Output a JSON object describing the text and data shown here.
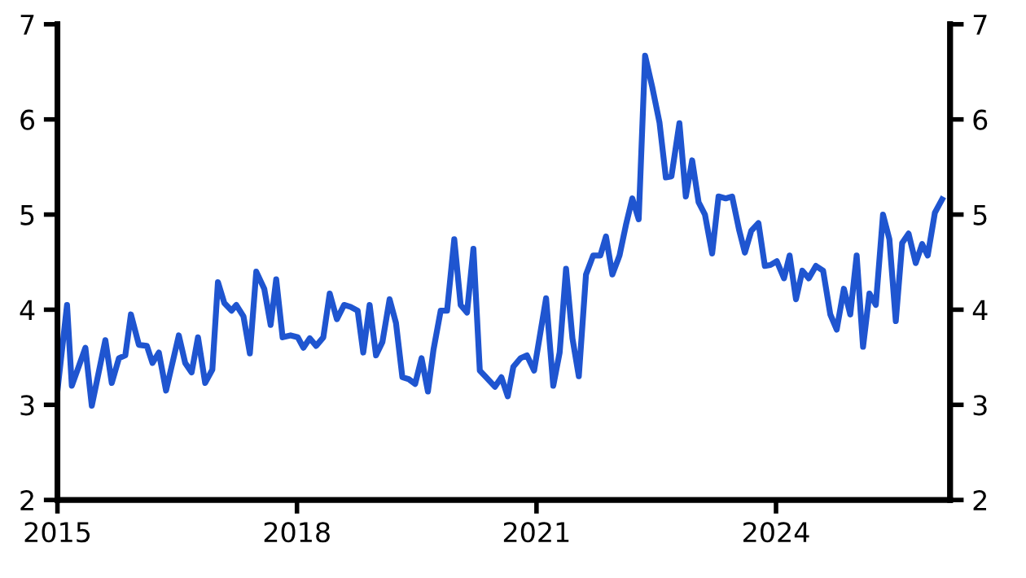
{
  "chart_data": {
    "type": "line",
    "x": [
      2015.0,
      2015.12,
      2015.18,
      2015.35,
      2015.43,
      2015.6,
      2015.68,
      2015.77,
      2015.85,
      2015.92,
      2016.02,
      2016.12,
      2016.19,
      2016.27,
      2016.36,
      2016.52,
      2016.6,
      2016.68,
      2016.76,
      2016.85,
      2016.94,
      2017.01,
      2017.09,
      2017.18,
      2017.24,
      2017.33,
      2017.41,
      2017.49,
      2017.59,
      2017.67,
      2017.74,
      2017.82,
      2017.92,
      2018.01,
      2018.08,
      2018.16,
      2018.24,
      2018.33,
      2018.41,
      2018.5,
      2018.59,
      2018.67,
      2018.76,
      2018.83,
      2018.91,
      2018.99,
      2019.07,
      2019.16,
      2019.24,
      2019.32,
      2019.4,
      2019.48,
      2019.56,
      2019.64,
      2019.71,
      2019.8,
      2019.88,
      2019.97,
      2020.05,
      2020.13,
      2020.21,
      2020.29,
      2020.37,
      2020.48,
      2020.56,
      2020.64,
      2020.71,
      2020.8,
      2020.88,
      2020.97,
      2021.12,
      2021.21,
      2021.29,
      2021.37,
      2021.45,
      2021.53,
      2021.62,
      2021.71,
      2021.8,
      2021.87,
      2021.95,
      2022.04,
      2022.12,
      2022.2,
      2022.28,
      2022.36,
      2022.45,
      2022.54,
      2022.62,
      2022.69,
      2022.79,
      2022.87,
      2022.95,
      2023.03,
      2023.11,
      2023.2,
      2023.28,
      2023.37,
      2023.45,
      2023.54,
      2023.61,
      2023.69,
      2023.78,
      2023.86,
      2023.93,
      2024.01,
      2024.1,
      2024.17,
      2024.25,
      2024.33,
      2024.41,
      2024.5,
      2024.59,
      2024.68,
      2024.76,
      2024.85,
      2024.93,
      2025.01,
      2025.09,
      2025.17,
      2025.25,
      2025.34,
      2025.42,
      2025.5,
      2025.58,
      2025.66,
      2025.75,
      2025.83,
      2025.9,
      2025.99,
      2026.08
    ],
    "series": [
      {
        "color": "#1f55d0",
        "values": [
          3.15,
          4.05,
          3.2,
          3.6,
          2.99,
          3.68,
          3.23,
          3.49,
          3.52,
          3.95,
          3.63,
          3.62,
          3.44,
          3.55,
          3.15,
          3.73,
          3.44,
          3.34,
          3.71,
          3.23,
          3.37,
          4.29,
          4.07,
          3.99,
          4.05,
          3.93,
          3.54,
          4.4,
          4.22,
          3.84,
          4.32,
          3.71,
          3.73,
          3.71,
          3.6,
          3.7,
          3.62,
          3.71,
          4.17,
          3.9,
          4.05,
          4.03,
          3.99,
          3.55,
          4.05,
          3.52,
          3.66,
          4.11,
          3.86,
          3.29,
          3.27,
          3.22,
          3.49,
          3.14,
          3.58,
          3.99,
          3.99,
          4.74,
          4.05,
          3.97,
          4.64,
          3.36,
          3.29,
          3.19,
          3.29,
          3.09,
          3.4,
          3.49,
          3.52,
          3.36,
          4.12,
          3.2,
          3.55,
          4.43,
          3.7,
          3.3,
          4.37,
          4.57,
          4.57,
          4.77,
          4.37,
          4.57,
          4.89,
          5.17,
          4.95,
          6.67,
          6.34,
          5.97,
          5.39,
          5.4,
          5.96,
          5.19,
          5.57,
          5.13,
          5.0,
          4.59,
          5.19,
          5.17,
          5.19,
          4.83,
          4.6,
          4.83,
          4.91,
          4.46,
          4.47,
          4.51,
          4.33,
          4.57,
          4.11,
          4.41,
          4.33,
          4.46,
          4.41,
          3.95,
          3.79,
          4.22,
          3.95,
          4.57,
          3.61,
          4.17,
          4.05,
          5.0,
          4.74,
          3.88,
          4.7,
          4.8,
          4.49,
          4.69,
          4.57,
          5.02,
          5.16
        ]
      }
    ],
    "xlim": [
      2015,
      2026.18
    ],
    "xticks": [
      2015,
      2018,
      2021,
      2024
    ],
    "ylim": [
      2,
      7
    ],
    "yticks": [
      2,
      3,
      4,
      5,
      6,
      7
    ],
    "y2lim": [
      2,
      7
    ],
    "y2ticks": [
      2,
      3,
      4,
      5,
      6,
      7
    ],
    "grid": false,
    "marker": "none",
    "line_style": "solid"
  }
}
